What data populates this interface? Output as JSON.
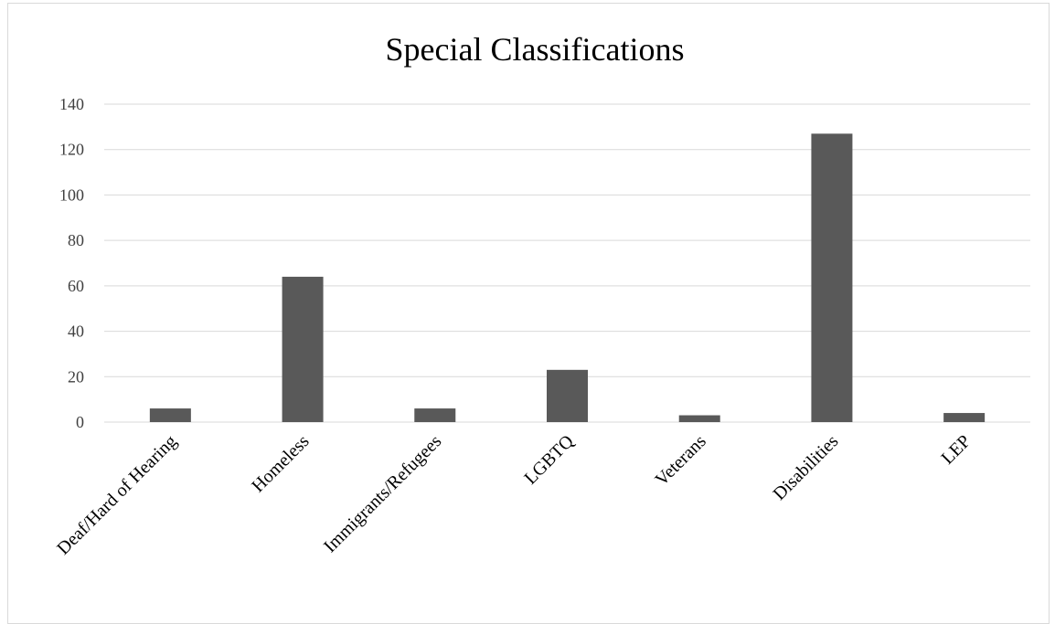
{
  "chart_data": {
    "type": "bar",
    "title": "Special Classifications",
    "xlabel": "",
    "ylabel": "",
    "categories": [
      "Deaf/Hard of Hearing",
      "Homeless",
      "Immigrants/Refugees",
      "LGBTQ",
      "Veterans",
      "Disabilities",
      "LEP"
    ],
    "values": [
      6,
      64,
      6,
      23,
      3,
      127,
      4
    ],
    "ylim": [
      0,
      140
    ],
    "yticks": [
      "0",
      "20",
      "40",
      "60",
      "80",
      "100",
      "120",
      "140"
    ],
    "grid": true,
    "legend": "none",
    "bar_color": "#595959",
    "grid_color": "#d9d9d9"
  }
}
